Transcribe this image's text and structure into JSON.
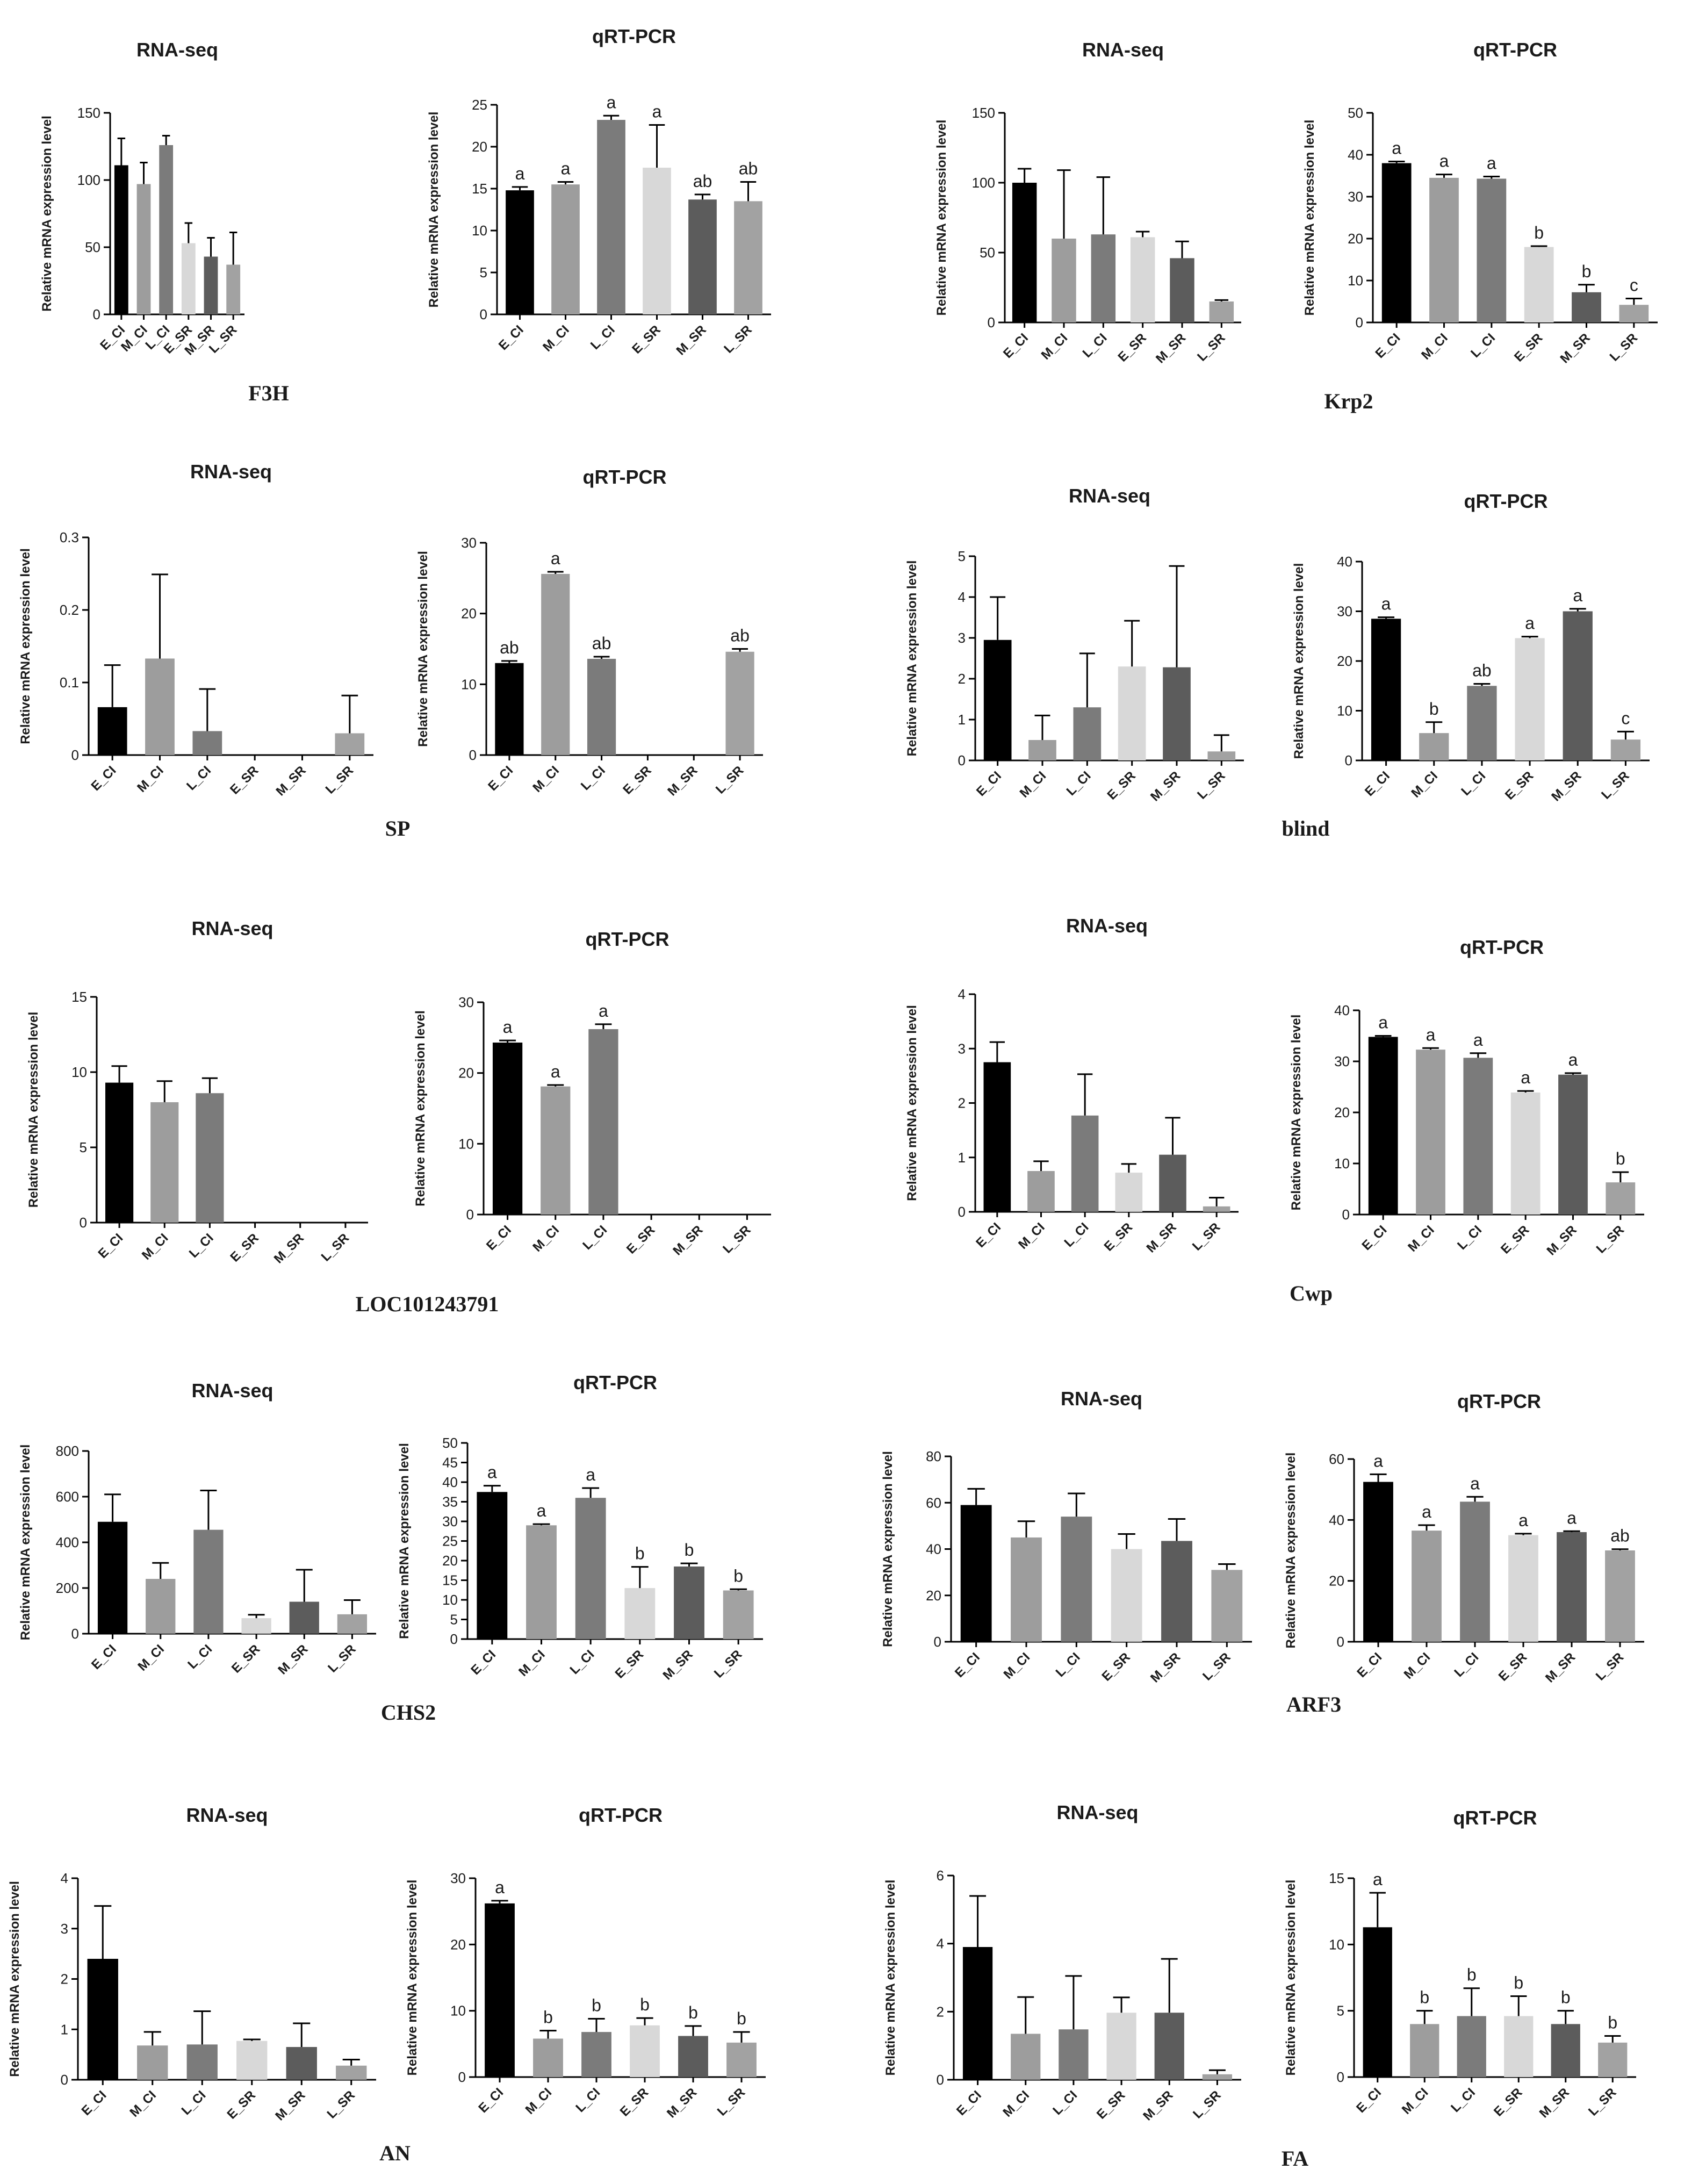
{
  "figure": {
    "colors": [
      "#000000",
      "#9d9d9d",
      "#7b7b7b",
      "#d8d8d8",
      "#5c5c5c",
      "#a2a2a2"
    ]
  },
  "chart_data": [
    {
      "gene": "F3H",
      "rna": {
        "type": "bar",
        "title": "RNA-seq",
        "ylabel": "Relative mRNA expression level",
        "categories": [
          "E_CI",
          "M_CI",
          "L_CI",
          "E_SR",
          "M_SR",
          "L_SR"
        ],
        "values": [
          111,
          97,
          126,
          53,
          43,
          37
        ],
        "errors": [
          20,
          16,
          7,
          15,
          14,
          24
        ],
        "ylim": [
          0,
          150
        ],
        "yticks": [
          0,
          50,
          100,
          150
        ]
      },
      "qpcr": {
        "type": "bar",
        "title": "qRT-PCR",
        "ylabel": "Relative mRNA expression level",
        "categories": [
          "E_CI",
          "M_CI",
          "L_CI",
          "E_SR",
          "M_SR",
          "L_SR"
        ],
        "values": [
          14.8,
          15.5,
          23.2,
          17.5,
          13.7,
          13.5
        ],
        "errors": [
          0.4,
          0.3,
          0.5,
          5.1,
          0.6,
          2.3
        ],
        "letters": [
          "a",
          "a",
          "a",
          "a",
          "ab",
          "ab"
        ],
        "ylim": [
          0,
          25
        ],
        "yticks": [
          0,
          5,
          10,
          15,
          20,
          25
        ]
      }
    },
    {
      "gene": "Krp2",
      "rna": {
        "type": "bar",
        "title": "RNA-seq",
        "ylabel": "Relative mRNA expression level",
        "categories": [
          "E_CI",
          "M_CI",
          "L_CI",
          "E_SR",
          "M_SR",
          "L_SR"
        ],
        "values": [
          100,
          60,
          63,
          61,
          46,
          15
        ],
        "errors": [
          10,
          49,
          41,
          4,
          12,
          1
        ],
        "ylim": [
          0,
          150
        ],
        "yticks": [
          0,
          50,
          100,
          150
        ]
      },
      "qpcr": {
        "type": "bar",
        "title": "qRT-PCR",
        "ylabel": "Relative mRNA expression level",
        "categories": [
          "E_CI",
          "M_CI",
          "L_CI",
          "E_SR",
          "M_SR",
          "L_SR"
        ],
        "values": [
          38,
          34.5,
          34.3,
          18,
          7.2,
          4.2
        ],
        "errors": [
          0.4,
          0.8,
          0.5,
          0.2,
          1.8,
          1.5
        ],
        "letters": [
          "a",
          "a",
          "a",
          "b",
          "b",
          "c"
        ],
        "ylim": [
          0,
          50
        ],
        "yticks": [
          0,
          10,
          20,
          30,
          40,
          50
        ]
      }
    },
    {
      "gene": "SP",
      "rna": {
        "type": "bar",
        "title": "RNA-seq",
        "ylabel": "Relative mRNA expression level",
        "categories": [
          "E_CI",
          "M_CI",
          "L_CI",
          "E_SR",
          "M_SR",
          "L_SR"
        ],
        "values": [
          0.066,
          0.133,
          0.033,
          0,
          0,
          0.03
        ],
        "errors": [
          0.058,
          0.116,
          0.058,
          0,
          0,
          0.052
        ],
        "ylim": [
          0,
          0.3
        ],
        "yticks": [
          0,
          0.1,
          0.2,
          0.3
        ]
      },
      "qpcr": {
        "type": "bar",
        "title": "qRT-PCR",
        "ylabel": "Relative mRNA expression level",
        "categories": [
          "E_CI",
          "M_CI",
          "L_CI",
          "E_SR",
          "M_SR",
          "L_SR"
        ],
        "values": [
          13,
          25.6,
          13.6,
          0,
          0,
          14.6
        ],
        "errors": [
          0.3,
          0.3,
          0.3,
          0,
          0,
          0.4
        ],
        "letters": [
          "ab",
          "a",
          "ab",
          "",
          "",
          "ab"
        ],
        "ylim": [
          0,
          30
        ],
        "yticks": [
          0,
          10,
          20,
          30
        ]
      }
    },
    {
      "gene": "blind",
      "rna": {
        "type": "bar",
        "title": "RNA-seq",
        "ylabel": "Relative mRNA expression level",
        "categories": [
          "E_CI",
          "M_CI",
          "L_CI",
          "E_SR",
          "M_SR",
          "L_SR"
        ],
        "values": [
          2.95,
          0.5,
          1.3,
          2.3,
          2.28,
          0.22
        ],
        "errors": [
          1.05,
          0.6,
          1.32,
          1.12,
          2.48,
          0.4
        ],
        "ylim": [
          0,
          5
        ],
        "yticks": [
          0,
          1,
          2,
          3,
          4,
          5
        ]
      },
      "qpcr": {
        "type": "bar",
        "title": "qRT-PCR",
        "ylabel": "Relative mRNA expression level",
        "categories": [
          "E_CI",
          "M_CI",
          "L_CI",
          "E_SR",
          "M_SR",
          "L_SR"
        ],
        "values": [
          28.5,
          5.5,
          15,
          24.6,
          30,
          4.2
        ],
        "errors": [
          0.3,
          2.2,
          0.4,
          0.3,
          0.5,
          1.6
        ],
        "letters": [
          "a",
          "b",
          "ab",
          "a",
          "a",
          "c"
        ],
        "ylim": [
          0,
          40
        ],
        "yticks": [
          0,
          10,
          20,
          30,
          40
        ]
      }
    },
    {
      "gene": "LOC101243791",
      "rna": {
        "type": "bar",
        "title": "RNA-seq",
        "ylabel": "Relative mRNA expression level",
        "categories": [
          "E_CI",
          "M_CI",
          "L_CI",
          "E_SR",
          "M_SR",
          "L_SR"
        ],
        "values": [
          9.3,
          8,
          8.6,
          0,
          0,
          0
        ],
        "errors": [
          1.1,
          1.4,
          1,
          0,
          0,
          0
        ],
        "ylim": [
          0,
          15
        ],
        "yticks": [
          0,
          5,
          10,
          15
        ]
      },
      "qpcr": {
        "type": "bar",
        "title": "qRT-PCR",
        "ylabel": "Relative mRNA expression level",
        "categories": [
          "E_CI",
          "M_CI",
          "L_CI",
          "E_SR",
          "M_SR",
          "L_SR"
        ],
        "values": [
          24.3,
          18.1,
          26.2,
          0,
          0,
          0
        ],
        "errors": [
          0.3,
          0.2,
          0.7,
          0,
          0,
          0
        ],
        "letters": [
          "a",
          "a",
          "a",
          "",
          "",
          ""
        ],
        "ylim": [
          0,
          30
        ],
        "yticks": [
          0,
          10,
          20,
          30
        ]
      }
    },
    {
      "gene": "Cwp",
      "rna": {
        "type": "bar",
        "title": "RNA-seq",
        "ylabel": "Relative mRNA expression level",
        "categories": [
          "E_CI",
          "M_CI",
          "L_CI",
          "E_SR",
          "M_SR",
          "L_SR"
        ],
        "values": [
          2.75,
          0.75,
          1.77,
          0.72,
          1.05,
          0.1
        ],
        "errors": [
          0.37,
          0.18,
          0.76,
          0.16,
          0.68,
          0.16
        ],
        "ylim": [
          0,
          4
        ],
        "yticks": [
          0,
          1,
          2,
          3,
          4
        ]
      },
      "qpcr": {
        "type": "bar",
        "title": "qRT-PCR",
        "ylabel": "Relative mRNA expression level",
        "categories": [
          "E_CI",
          "M_CI",
          "L_CI",
          "E_SR",
          "M_SR",
          "L_SR"
        ],
        "values": [
          34.8,
          32.3,
          30.7,
          23.9,
          27.4,
          6.3
        ],
        "errors": [
          0.2,
          0.3,
          0.9,
          0.3,
          0.3,
          2
        ],
        "letters": [
          "a",
          "a",
          "a",
          "a",
          "a",
          "b"
        ],
        "ylim": [
          0,
          40
        ],
        "yticks": [
          0,
          10,
          20,
          30,
          40
        ]
      }
    },
    {
      "gene": "CHS2",
      "rna": {
        "type": "bar",
        "title": "RNA-seq",
        "ylabel": "Relative mRNA expression level",
        "categories": [
          "E_CI",
          "M_CI",
          "L_CI",
          "E_SR",
          "M_SR",
          "L_SR"
        ],
        "values": [
          490,
          240,
          455,
          68,
          140,
          85
        ],
        "errors": [
          120,
          70,
          172,
          15,
          140,
          62
        ],
        "ylim": [
          0,
          800
        ],
        "yticks": [
          0,
          200,
          400,
          600,
          800
        ]
      },
      "qpcr": {
        "type": "bar",
        "title": "qRT-PCR",
        "ylabel": "Relative mRNA expression level",
        "categories": [
          "E_CI",
          "M_CI",
          "L_CI",
          "E_SR",
          "M_SR",
          "L_SR"
        ],
        "values": [
          37.5,
          29,
          36,
          13,
          18.5,
          12.4
        ],
        "errors": [
          1.6,
          0.3,
          2.5,
          5.4,
          0.8,
          0.3
        ],
        "letters": [
          "a",
          "a",
          "a",
          "b",
          "b",
          "b"
        ],
        "ylim": [
          0,
          50
        ],
        "yticks": [
          0,
          5,
          10,
          15,
          20,
          25,
          30,
          35,
          40,
          45,
          50
        ]
      }
    },
    {
      "gene": "ARF3",
      "rna": {
        "type": "bar",
        "title": "RNA-seq",
        "ylabel": "Relative mRNA expression level",
        "categories": [
          "E_CI",
          "M_CI",
          "L_CI",
          "E_SR",
          "M_SR",
          "L_SR"
        ],
        "values": [
          59,
          45,
          54,
          40,
          43.5,
          31
        ],
        "errors": [
          7,
          7,
          10,
          6.5,
          9.5,
          2.5
        ],
        "ylim": [
          0,
          80
        ],
        "yticks": [
          0,
          20,
          40,
          60,
          80
        ]
      },
      "qpcr": {
        "type": "bar",
        "title": "qRT-PCR",
        "ylabel": "Relative mRNA expression level",
        "categories": [
          "E_CI",
          "M_CI",
          "L_CI",
          "E_SR",
          "M_SR",
          "L_SR"
        ],
        "values": [
          52.5,
          36.5,
          46,
          35,
          36,
          30
        ],
        "errors": [
          2.5,
          1.8,
          1.6,
          0.5,
          0.3,
          0.4
        ],
        "letters": [
          "a",
          "a",
          "a",
          "a",
          "a",
          "ab"
        ],
        "ylim": [
          0,
          60
        ],
        "yticks": [
          0,
          20,
          40,
          60
        ]
      }
    },
    {
      "gene": "AN",
      "rna": {
        "type": "bar",
        "title": "RNA-seq",
        "ylabel": "Relative mRNA expression level",
        "categories": [
          "E_CI",
          "M_CI",
          "L_CI",
          "E_SR",
          "M_SR",
          "L_SR"
        ],
        "values": [
          2.4,
          0.68,
          0.7,
          0.77,
          0.65,
          0.28
        ],
        "errors": [
          1.05,
          0.27,
          0.66,
          0.03,
          0.47,
          0.12
        ],
        "ylim": [
          0,
          4
        ],
        "yticks": [
          0,
          1,
          2,
          3,
          4
        ]
      },
      "qpcr": {
        "type": "bar",
        "title": "qRT-PCR",
        "ylabel": "Relative mRNA expression level",
        "categories": [
          "E_CI",
          "M_CI",
          "L_CI",
          "E_SR",
          "M_SR",
          "L_SR"
        ],
        "values": [
          26.2,
          5.8,
          6.8,
          7.8,
          6.2,
          5.2
        ],
        "errors": [
          0.4,
          1.2,
          2,
          1.1,
          1.5,
          1.6
        ],
        "letters": [
          "a",
          "b",
          "b",
          "b",
          "b",
          "b"
        ],
        "ylim": [
          0,
          30
        ],
        "yticks": [
          0,
          10,
          20,
          30
        ]
      }
    },
    {
      "gene": "FA",
      "rna": {
        "type": "bar",
        "title": "RNA-seq",
        "ylabel": "Relative mRNA expression level",
        "categories": [
          "E_CI",
          "M_CI",
          "L_CI",
          "E_SR",
          "M_SR",
          "L_SR"
        ],
        "values": [
          3.9,
          1.35,
          1.48,
          1.97,
          1.97,
          0.16
        ],
        "errors": [
          1.5,
          1.08,
          1.57,
          0.45,
          1.58,
          0.12
        ],
        "ylim": [
          0,
          6
        ],
        "yticks": [
          0,
          2,
          4,
          6
        ]
      },
      "qpcr": {
        "type": "bar",
        "title": "qRT-PCR",
        "ylabel": "Relative mRNA expression level",
        "categories": [
          "E_CI",
          "M_CI",
          "L_CI",
          "E_SR",
          "M_SR",
          "L_SR"
        ],
        "values": [
          11.3,
          4,
          4.6,
          4.6,
          4,
          2.6
        ],
        "errors": [
          2.6,
          1,
          2.1,
          1.5,
          1,
          0.5
        ],
        "letters": [
          "a",
          "b",
          "b",
          "b",
          "b",
          "b"
        ],
        "ylim": [
          0,
          15
        ],
        "yticks": [
          0,
          5,
          10,
          15
        ]
      }
    }
  ]
}
